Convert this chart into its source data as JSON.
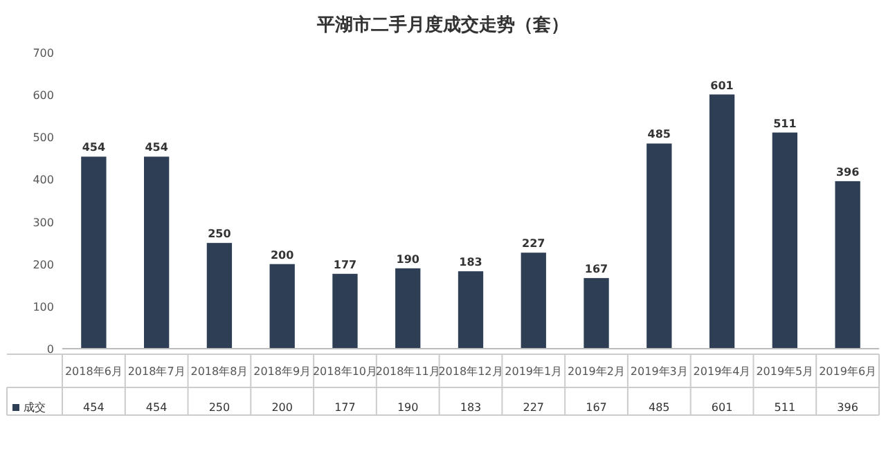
{
  "chart_data": {
    "type": "bar",
    "title": "平湖市二手月度成交走势（套）",
    "categories": [
      "2018年6月",
      "2018年7月",
      "2018年8月",
      "2018年9月",
      "2018年10月",
      "2018年11月",
      "2018年12月",
      "2019年1月",
      "2019年2月",
      "2019年3月",
      "2019年4月",
      "2019年5月",
      "2019年6月"
    ],
    "series": [
      {
        "name": "成交",
        "color": "#2e3f55",
        "values": [
          454,
          454,
          250,
          200,
          177,
          190,
          183,
          227,
          167,
          485,
          601,
          511,
          396
        ]
      }
    ],
    "data_labels": true,
    "ylim": [
      0,
      700
    ],
    "yticks": [
      0,
      100,
      200,
      300,
      400,
      500,
      600,
      700
    ],
    "legend": "bottom",
    "annotations": [
      "454",
      "454",
      "250",
      "200",
      "177",
      "190",
      "183",
      "227",
      "167",
      "485",
      "601",
      "511",
      "396"
    ]
  }
}
